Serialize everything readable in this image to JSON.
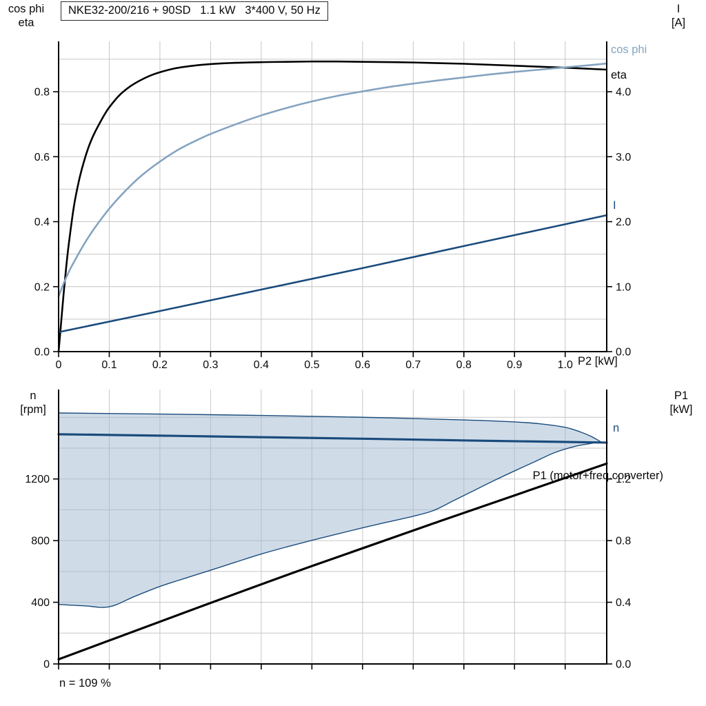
{
  "labels": {
    "top_left": [
      "cos phi",
      "eta"
    ],
    "top_right": [
      "I",
      "[A]"
    ],
    "bottom_left": [
      "n",
      "[rpm]"
    ],
    "bottom_right": [
      "P1",
      "[kW]"
    ],
    "footnote": "n = 109 %"
  },
  "colors": {
    "black": "#000000",
    "dark_blue": "#1a4b7c",
    "light_blue": "#84a3c0",
    "shade": "rgba(160,186,210,0.5)",
    "grid": "#c6c6c6",
    "axis": "#000000"
  },
  "chart_data": [
    {
      "id": "top",
      "type": "line",
      "title": "NKE32-200/216 + 90SD   1.1 kW   3*400 V, 50 Hz",
      "x": {
        "label": "P2 [kW]",
        "min": 0,
        "max": 1.082,
        "grid": [
          0.1,
          0.2,
          0.3,
          0.4,
          0.5,
          0.6,
          0.7,
          0.8,
          0.9,
          1.0
        ],
        "labels_visible": true,
        "ticks": [
          {
            "v": 0,
            "t": "0"
          },
          {
            "v": 0.1,
            "t": "0.1"
          },
          {
            "v": 0.2,
            "t": "0.2"
          },
          {
            "v": 0.3,
            "t": "0.3"
          },
          {
            "v": 0.4,
            "t": "0.4"
          },
          {
            "v": 0.5,
            "t": "0.5"
          },
          {
            "v": 0.6,
            "t": "0.6"
          },
          {
            "v": 0.7,
            "t": "0.7"
          },
          {
            "v": 0.8,
            "t": "0.8"
          },
          {
            "v": 0.9,
            "t": "0.9"
          },
          {
            "v": 1.0,
            "t": "1.0"
          }
        ]
      },
      "yl": {
        "label_lines": [
          "cos phi",
          "eta"
        ],
        "min": 0,
        "max": 0.955,
        "grid": [
          0.1,
          0.2,
          0.3,
          0.4,
          0.5,
          0.6,
          0.7,
          0.8,
          0.9
        ],
        "ticks": [
          {
            "v": 0,
            "t": "0.0"
          },
          {
            "v": 0.2,
            "t": "0.2"
          },
          {
            "v": 0.4,
            "t": "0.4"
          },
          {
            "v": 0.6,
            "t": "0.6"
          },
          {
            "v": 0.8,
            "t": "0.8"
          }
        ]
      },
      "yr": {
        "label_lines": [
          "I",
          "[A]"
        ],
        "min": 0,
        "max": 4.775,
        "ticks": [
          {
            "v": 0,
            "t": "0.0"
          },
          {
            "v": 1,
            "t": "1.0"
          },
          {
            "v": 2,
            "t": "2.0"
          },
          {
            "v": 3,
            "t": "3.0"
          },
          {
            "v": 4,
            "t": "4.0"
          }
        ]
      },
      "series": [
        {
          "name": "eta",
          "axis": "l",
          "color_key": "black",
          "width": 2.6,
          "points": [
            [
              0,
              0
            ],
            [
              0.005,
              0.09
            ],
            [
              0.01,
              0.18
            ],
            [
              0.015,
              0.26
            ],
            [
              0.02,
              0.33
            ],
            [
              0.03,
              0.445
            ],
            [
              0.04,
              0.525
            ],
            [
              0.05,
              0.585
            ],
            [
              0.06,
              0.633
            ],
            [
              0.07,
              0.67
            ],
            [
              0.08,
              0.7
            ],
            [
              0.09,
              0.728
            ],
            [
              0.1,
              0.752
            ],
            [
              0.12,
              0.789
            ],
            [
              0.14,
              0.815
            ],
            [
              0.16,
              0.834
            ],
            [
              0.18,
              0.849
            ],
            [
              0.2,
              0.86
            ],
            [
              0.23,
              0.872
            ],
            [
              0.26,
              0.879
            ],
            [
              0.3,
              0.885
            ],
            [
              0.35,
              0.889
            ],
            [
              0.4,
              0.891
            ],
            [
              0.45,
              0.892
            ],
            [
              0.5,
              0.893
            ],
            [
              0.55,
              0.893
            ],
            [
              0.6,
              0.892
            ],
            [
              0.7,
              0.89
            ],
            [
              0.8,
              0.886
            ],
            [
              0.9,
              0.88
            ],
            [
              1.0,
              0.874
            ],
            [
              1.082,
              0.868
            ]
          ]
        },
        {
          "name": "cos phi",
          "axis": "l",
          "color_key": "light_blue",
          "width": 2.6,
          "points": [
            [
              0,
              0.17
            ],
            [
              0.01,
              0.21
            ],
            [
              0.02,
              0.245
            ],
            [
              0.03,
              0.275
            ],
            [
              0.05,
              0.33
            ],
            [
              0.07,
              0.378
            ],
            [
              0.1,
              0.44
            ],
            [
              0.13,
              0.492
            ],
            [
              0.16,
              0.537
            ],
            [
              0.2,
              0.585
            ],
            [
              0.24,
              0.625
            ],
            [
              0.28,
              0.656
            ],
            [
              0.3,
              0.67
            ],
            [
              0.35,
              0.7
            ],
            [
              0.4,
              0.727
            ],
            [
              0.45,
              0.75
            ],
            [
              0.5,
              0.77
            ],
            [
              0.55,
              0.787
            ],
            [
              0.6,
              0.801
            ],
            [
              0.65,
              0.814
            ],
            [
              0.7,
              0.825
            ],
            [
              0.75,
              0.835
            ],
            [
              0.8,
              0.844
            ],
            [
              0.85,
              0.853
            ],
            [
              0.9,
              0.861
            ],
            [
              0.95,
              0.868
            ],
            [
              1.0,
              0.875
            ],
            [
              1.05,
              0.882
            ],
            [
              1.082,
              0.887
            ]
          ]
        },
        {
          "name": "I",
          "axis": "r",
          "color_key": "dark_blue",
          "width": 2.6,
          "points": [
            [
              0,
              0.3
            ],
            [
              0.2,
              0.625
            ],
            [
              0.4,
              0.955
            ],
            [
              0.6,
              1.285
            ],
            [
              0.8,
              1.625
            ],
            [
              1.0,
              1.96
            ],
            [
              1.082,
              2.1
            ]
          ]
        }
      ]
    },
    {
      "id": "bottom",
      "type": "line",
      "x": {
        "label": "",
        "min": 0,
        "max": 1.082,
        "grid": [
          0.1,
          0.2,
          0.3,
          0.4,
          0.5,
          0.6,
          0.7,
          0.8,
          0.9,
          1.0
        ],
        "labels_visible": false,
        "ticks": [
          {
            "v": 0,
            "t": "0"
          },
          {
            "v": 0.1,
            "t": ""
          },
          {
            "v": 0.2,
            "t": ""
          },
          {
            "v": 0.3,
            "t": ""
          },
          {
            "v": 0.4,
            "t": ""
          },
          {
            "v": 0.5,
            "t": ""
          },
          {
            "v": 0.6,
            "t": ""
          },
          {
            "v": 0.7,
            "t": ""
          },
          {
            "v": 0.8,
            "t": ""
          },
          {
            "v": 0.9,
            "t": ""
          },
          {
            "v": 1.0,
            "t": ""
          }
        ]
      },
      "yl": {
        "label_lines": [
          "n",
          "[rpm]"
        ],
        "min": 0,
        "max": 1780,
        "grid": [
          200,
          400,
          600,
          800,
          1000,
          1200,
          1400,
          1600
        ],
        "ticks": [
          {
            "v": 0,
            "t": "0"
          },
          {
            "v": 400,
            "t": "400"
          },
          {
            "v": 800,
            "t": "800"
          },
          {
            "v": 1200,
            "t": "1200"
          }
        ]
      },
      "yr": {
        "label_lines": [
          "P1",
          "[kW]"
        ],
        "min": 0,
        "max": 1.78,
        "ticks": [
          {
            "v": 0,
            "t": "0.0"
          },
          {
            "v": 0.4,
            "t": "0.4"
          },
          {
            "v": 0.8,
            "t": "0.8"
          },
          {
            "v": 1.2,
            "t": "1.2"
          }
        ]
      },
      "region": {
        "name": "speed-control-range",
        "upper": [
          [
            0,
            1628
          ],
          [
            0.2,
            1621
          ],
          [
            0.4,
            1612
          ],
          [
            0.6,
            1600
          ],
          [
            0.8,
            1583
          ],
          [
            0.9,
            1570
          ],
          [
            0.95,
            1558
          ],
          [
            1.0,
            1535
          ],
          [
            1.03,
            1505
          ],
          [
            1.05,
            1478
          ],
          [
            1.07,
            1442
          ]
        ],
        "lower": [
          [
            0,
            386
          ],
          [
            0.05,
            377
          ],
          [
            0.1,
            371
          ],
          [
            0.15,
            438
          ],
          [
            0.2,
            503
          ],
          [
            0.25,
            556
          ],
          [
            0.3,
            608
          ],
          [
            0.35,
            661
          ],
          [
            0.4,
            713
          ],
          [
            0.45,
            759
          ],
          [
            0.5,
            802
          ],
          [
            0.55,
            843
          ],
          [
            0.6,
            883
          ],
          [
            0.65,
            921
          ],
          [
            0.7,
            958
          ],
          [
            0.74,
            995
          ],
          [
            0.78,
            1060
          ],
          [
            0.82,
            1125
          ],
          [
            0.86,
            1190
          ],
          [
            0.9,
            1252
          ],
          [
            0.94,
            1312
          ],
          [
            0.98,
            1372
          ],
          [
            1.02,
            1412
          ],
          [
            1.05,
            1430
          ],
          [
            1.07,
            1442
          ]
        ]
      },
      "series": [
        {
          "name": "n",
          "axis": "l",
          "color_key": "dark_blue",
          "width": 3.2,
          "points": [
            [
              0,
              1490
            ],
            [
              0.2,
              1481
            ],
            [
              0.4,
              1471
            ],
            [
              0.6,
              1461
            ],
            [
              0.8,
              1450
            ],
            [
              1.0,
              1440
            ],
            [
              1.082,
              1436
            ]
          ]
        },
        {
          "name": "P1",
          "label": "P1 (motor+freq.converter)",
          "axis": "r",
          "color_key": "black",
          "width": 3.2,
          "points": [
            [
              0,
              0.03
            ],
            [
              0.5,
              0.635
            ],
            [
              1.082,
              1.3
            ]
          ]
        }
      ]
    }
  ]
}
